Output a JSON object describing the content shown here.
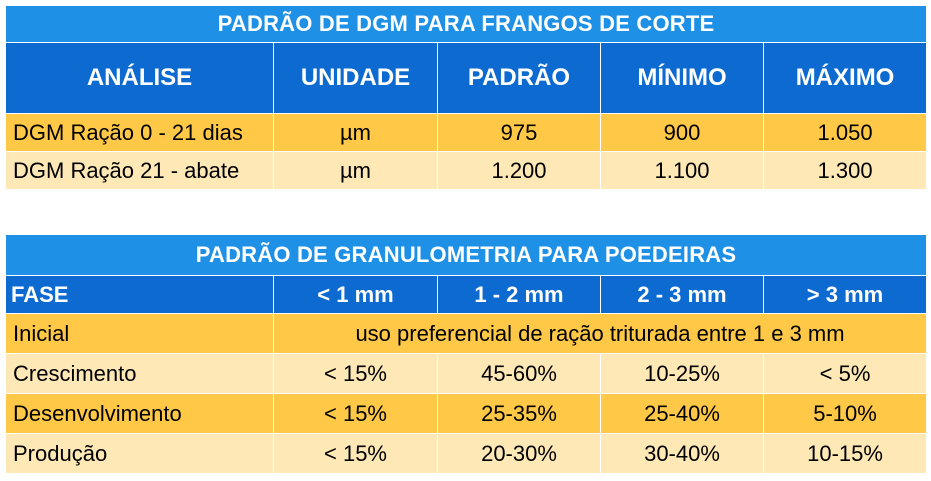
{
  "broiler_table": {
    "title": "PADRÃO DE DGM PARA FRANGOS DE CORTE",
    "headers": [
      "ANÁLISE",
      "UNIDADE",
      "PADRÃO",
      "MÍNIMO",
      "MÁXIMO"
    ],
    "rows": [
      [
        "DGM Ração 0 - 21 dias",
        "µm",
        "975",
        "900",
        "1.050"
      ],
      [
        "DGM Ração 21 - abate",
        "µm",
        "1.200",
        "1.100",
        "1.300"
      ]
    ]
  },
  "layer_table": {
    "title": "PADRÃO DE GRANULOMETRIA PARA POEDEIRAS",
    "headers": [
      "FASE",
      "< 1 mm",
      "1 - 2 mm",
      "2 - 3 mm",
      "> 3 mm"
    ],
    "initial_row": {
      "phase": "Inicial",
      "note": "uso preferencial de ração triturada entre 1 e 3 mm"
    },
    "rows": [
      [
        "Crescimento",
        "< 15%",
        "45-60%",
        "10-25%",
        "< 5%"
      ],
      [
        "Desenvolvimento",
        "< 15%",
        "25-35%",
        "25-40%",
        "5-10%"
      ],
      [
        "Produção",
        "< 15%",
        "20-30%",
        "30-40%",
        "10-15%"
      ]
    ]
  },
  "colors": {
    "title_bar": "#1e90e6",
    "header_bar": "#0d6ad0",
    "row_dark": "#ffc947",
    "row_light": "#fde8b6"
  }
}
